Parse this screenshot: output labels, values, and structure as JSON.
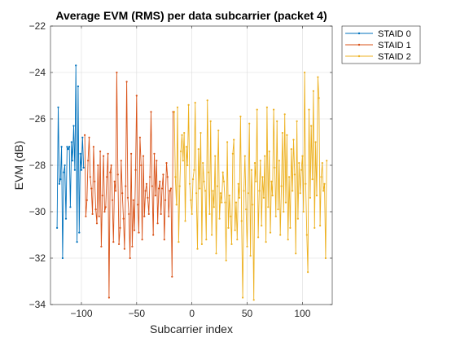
{
  "chart_data": {
    "type": "line",
    "title": "Average EVM (RMS) per data subcarrier (packet 4)",
    "xlabel": "Subcarrier index",
    "ylabel": "EVM (dB)",
    "xlim": [
      -128,
      127
    ],
    "ylim": [
      -34,
      -22
    ],
    "xticks": [
      -100,
      -50,
      0,
      50,
      100
    ],
    "yticks": [
      -34,
      -32,
      -30,
      -28,
      -26,
      -24,
      -22
    ],
    "grid": true,
    "legend_position": "outside-top-right",
    "series": [
      {
        "name": "STAID 0",
        "color": "#0072BD",
        "x": [
          -122,
          -121,
          -120,
          -119,
          -118,
          -117,
          -116,
          -115,
          -114,
          -113,
          -112,
          -111,
          -110,
          -109,
          -108,
          -107,
          -106,
          -105,
          -104,
          -103,
          -102,
          -101,
          -100,
          -99,
          -98
        ],
        "y": [
          -30.7,
          -25.5,
          -28.8,
          -28.6,
          -27.2,
          -32.0,
          -28.3,
          -28.0,
          -30.3,
          -27.2,
          -27.3,
          -27.2,
          -29.8,
          -27.0,
          -27.8,
          -26.3,
          -28.2,
          -23.7,
          -31.3,
          -24.6,
          -30.9,
          -27.5,
          -28.2,
          -26.8,
          -28.1
        ]
      },
      {
        "name": "STAID 1",
        "color": "#D95319",
        "x": [
          -97,
          -96,
          -95,
          -94,
          -93,
          -92,
          -91,
          -90,
          -89,
          -88,
          -87,
          -86,
          -85,
          -84,
          -83,
          -82,
          -81,
          -80,
          -79,
          -78,
          -77,
          -76,
          -75,
          -74,
          -73,
          -72,
          -71,
          -70,
          -69,
          -68,
          -67,
          -66,
          -65,
          -64,
          -63,
          -62,
          -61,
          -60,
          -59,
          -58,
          -57,
          -56,
          -55,
          -54,
          -53,
          -52,
          -51,
          -50,
          -49,
          -48,
          -47,
          -46,
          -45,
          -44,
          -43,
          -42,
          -41,
          -40,
          -39,
          -38,
          -37,
          -36,
          -35,
          -34,
          -33,
          -32,
          -31,
          -30,
          -29,
          -28,
          -27,
          -26,
          -25,
          -24,
          -23,
          -22,
          -21,
          -20,
          -19,
          -18,
          -17
        ],
        "y": [
          -26.7,
          -30.2,
          -29.5,
          -27.8,
          -26.8,
          -28.5,
          -29.0,
          -30.1,
          -27.2,
          -28.7,
          -29.9,
          -30.5,
          -28.0,
          -30.2,
          -27.4,
          -31.5,
          -29.3,
          -27.6,
          -30.0,
          -29.8,
          -28.5,
          -27.5,
          -33.7,
          -28.3,
          -28.0,
          -29.5,
          -31.3,
          -28.7,
          -29.1,
          -24.0,
          -28.4,
          -31.4,
          -30.7,
          -27.8,
          -29.2,
          -30.3,
          -31.6,
          -28.9,
          -24.4,
          -29.4,
          -30.1,
          -32.0,
          -27.5,
          -31.5,
          -29.5,
          -30.8,
          -28.2,
          -25.0,
          -29.7,
          -30.9,
          -26.8,
          -28.0,
          -31.2,
          -27.6,
          -30.2,
          -29.1,
          -28.8,
          -29.4,
          -30.1,
          -28.5,
          -25.7,
          -28.9,
          -31.0,
          -27.5,
          -29.3,
          -27.8,
          -30.5,
          -29.0,
          -28.7,
          -30.1,
          -29.0,
          -28.4,
          -31.2,
          -29.5,
          -27.9,
          -28.5,
          -30.2,
          -29.1,
          -29.0,
          -32.8,
          -25.7
        ]
      },
      {
        "name": "STAID 2",
        "color": "#EDB120",
        "x": [
          -16,
          -15,
          -14,
          -13,
          -12,
          -11,
          -10,
          -9,
          -8,
          -7,
          -6,
          -5,
          -4,
          -3,
          -2,
          -1,
          0,
          1,
          2,
          3,
          4,
          5,
          6,
          7,
          8,
          9,
          10,
          11,
          12,
          13,
          14,
          15,
          16,
          17,
          18,
          19,
          20,
          21,
          22,
          23,
          24,
          25,
          26,
          27,
          28,
          29,
          30,
          31,
          32,
          33,
          34,
          35,
          36,
          37,
          38,
          39,
          40,
          41,
          42,
          43,
          44,
          45,
          46,
          47,
          48,
          49,
          50,
          51,
          52,
          53,
          54,
          55,
          56,
          57,
          58,
          59,
          60,
          61,
          62,
          63,
          64,
          65,
          66,
          67,
          68,
          69,
          70,
          71,
          72,
          73,
          74,
          75,
          76,
          77,
          78,
          79,
          80,
          81,
          82,
          83,
          84,
          85,
          86,
          87,
          88,
          89,
          90,
          91,
          92,
          93,
          94,
          95,
          96,
          97,
          98,
          99,
          100,
          101,
          102,
          103,
          104,
          105,
          106,
          107,
          108,
          109,
          110,
          111,
          112,
          113,
          114,
          115,
          116,
          117,
          118,
          119,
          120,
          121,
          122
        ],
        "y": [
          -25.7,
          -28.5,
          -29.7,
          -25.5,
          -31.3,
          -28.9,
          -27.4,
          -26.7,
          -27.8,
          -26.6,
          -30.4,
          -27.2,
          -28.0,
          -25.4,
          -28.8,
          -29.5,
          -30.1,
          -28.6,
          -28.2,
          -25.3,
          -29.2,
          -31.6,
          -27.3,
          -29.0,
          -26.6,
          -31.4,
          -27.9,
          -28.7,
          -29.1,
          -31.2,
          -25.2,
          -28.3,
          -30.1,
          -26.1,
          -31.0,
          -29.1,
          -29.8,
          -27.6,
          -31.8,
          -28.9,
          -26.5,
          -30.3,
          -29.2,
          -29.6,
          -28.3,
          -28.7,
          -29.6,
          -32.1,
          -27.0,
          -30.7,
          -29.3,
          -30.2,
          -31.4,
          -27.5,
          -26.9,
          -30.8,
          -29.6,
          -31.2,
          -28.8,
          -29.4,
          -25.9,
          -30.4,
          -33.7,
          -29.1,
          -27.6,
          -29.9,
          -31.5,
          -29.2,
          -26.2,
          -31.9,
          -28.2,
          -29.7,
          -33.8,
          -27.9,
          -28.7,
          -25.6,
          -31.1,
          -29.1,
          -27.8,
          -30.6,
          -28.5,
          -29.4,
          -27.6,
          -31.3,
          -25.5,
          -29.8,
          -27.4,
          -30.9,
          -28.7,
          -29.3,
          -25.6,
          -28.1,
          -30.2,
          -26.1,
          -29.9,
          -27.8,
          -31.0,
          -28.9,
          -26.6,
          -30.0,
          -25.8,
          -29.6,
          -26.7,
          -31.2,
          -28.5,
          -30.7,
          -27.3,
          -29.1,
          -26.9,
          -28.4,
          -31.8,
          -26.1,
          -30.3,
          -27.9,
          -29.2,
          -28.2,
          -27.6,
          -30.0,
          -24.0,
          -28.8,
          -31.0,
          -32.6,
          -25.6,
          -29.4,
          -26.3,
          -28.6,
          -24.8,
          -30.7,
          -27.0,
          -29.3,
          -24.2,
          -25.1,
          -30.6,
          -28.5,
          -27.9,
          -29.1,
          -28.8,
          -32.0,
          -27.8
        ]
      }
    ]
  }
}
